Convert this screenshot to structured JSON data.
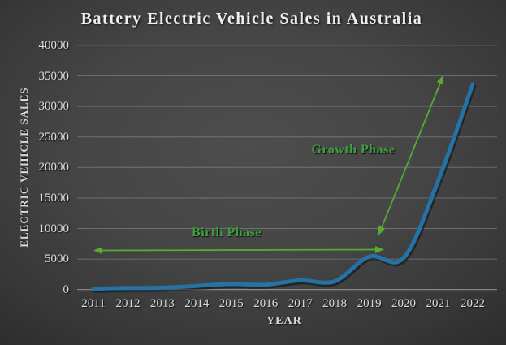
{
  "title": "Battery Electric Vehicle Sales in Australia",
  "chart_data": {
    "type": "line",
    "title": "Battery Electric Vehicle Sales in Australia",
    "xlabel": "YEAR",
    "ylabel": "ELECTRIC VEHICLE SALES",
    "x": [
      "2011",
      "2012",
      "2013",
      "2014",
      "2015",
      "2016",
      "2017",
      "2018",
      "2019",
      "2020",
      "2021",
      "2022"
    ],
    "series": [
      {
        "name": "Battery Electric Vehicle Sales",
        "values": [
          150,
          250,
          300,
          600,
          900,
          800,
          1500,
          1350,
          5400,
          5200,
          17800,
          33600
        ]
      }
    ],
    "ylim": [
      0,
      40000
    ],
    "y_ticks": [
      0,
      5000,
      10000,
      15000,
      20000,
      25000,
      30000,
      35000,
      40000
    ],
    "grid": true,
    "legend_position": "none",
    "annotations": [
      {
        "label": "Birth Phase",
        "type": "double-arrow",
        "orientation": "horizontal",
        "x_span": [
          "2011",
          "2019"
        ],
        "y_value": 6400
      },
      {
        "label": "Growth Phase",
        "type": "double-arrow",
        "orientation": "diagonal",
        "from": {
          "x": "2019",
          "y": 8800
        },
        "to": {
          "x": "2021",
          "y": 35200
        }
      }
    ]
  },
  "colors": {
    "line": "#2173a8",
    "annotation_text": "#3fa13f",
    "annotation_arrow": "#58ad31",
    "gridline": "#d8d8d8",
    "axis_text": "#e2e2e2",
    "title_text": "#f0f0f0"
  },
  "labels": {
    "birth_phase": "Birth Phase",
    "growth_phase": "Growth Phase"
  }
}
